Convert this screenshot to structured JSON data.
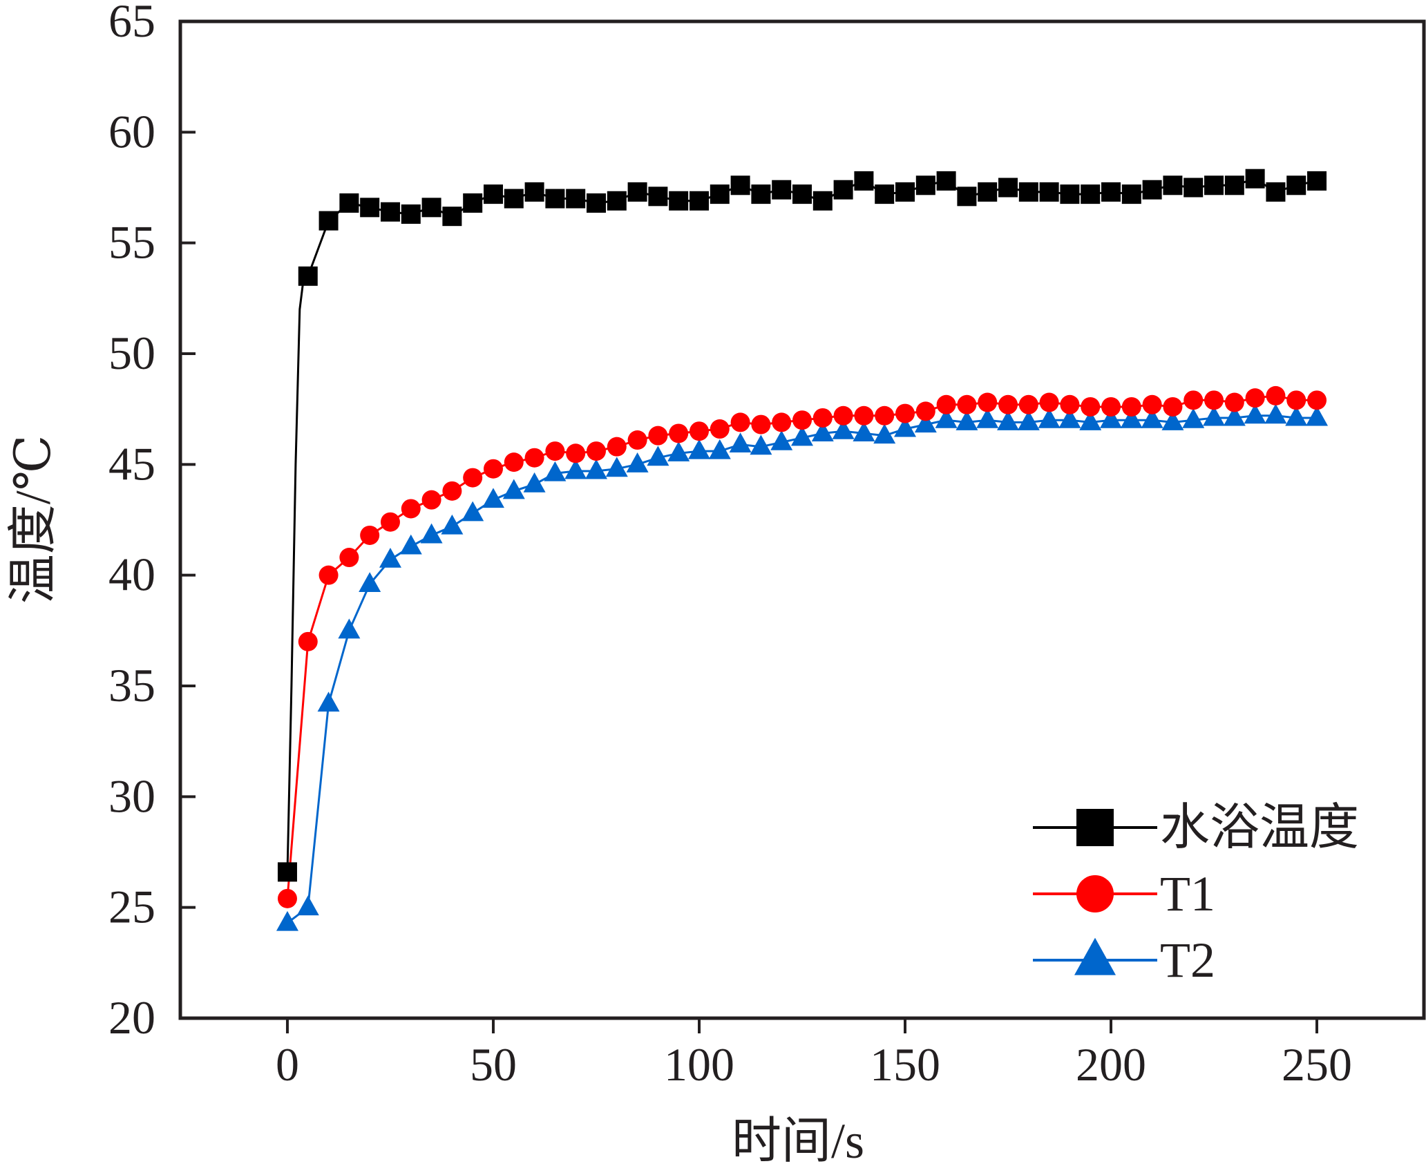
{
  "chart_data": {
    "type": "line",
    "title": "",
    "xlabel": "时间/s",
    "ylabel": "温度/℃",
    "xlim": [
      -26,
      276
    ],
    "ylim": [
      20,
      65
    ],
    "xticks": [
      0,
      50,
      100,
      150,
      200,
      250
    ],
    "yticks": [
      20,
      25,
      30,
      35,
      40,
      45,
      50,
      55,
      60,
      65
    ],
    "grid": false,
    "legend_position": "bottom-right",
    "series": [
      {
        "name": "水浴温度",
        "color": "#000000",
        "marker": "square",
        "x": [
          0,
          1,
          2,
          3,
          4,
          5,
          10,
          15,
          20,
          25,
          30,
          35,
          40,
          45,
          50,
          55,
          60,
          65,
          70,
          75,
          80,
          85,
          90,
          95,
          100,
          105,
          110,
          115,
          120,
          125,
          130,
          135,
          140,
          145,
          150,
          155,
          160,
          165,
          170,
          175,
          180,
          185,
          190,
          195,
          200,
          205,
          210,
          215,
          220,
          225,
          230,
          235,
          240,
          245,
          250
        ],
        "y": [
          26.6,
          35,
          45,
          52,
          53.5,
          53.5,
          56.0,
          56.8,
          56.6,
          56.4,
          56.3,
          56.6,
          56.2,
          56.8,
          57.2,
          57.0,
          57.3,
          57.0,
          57.0,
          56.8,
          56.9,
          57.3,
          57.1,
          56.9,
          56.9,
          57.2,
          57.6,
          57.2,
          57.4,
          57.2,
          56.9,
          57.4,
          57.8,
          57.2,
          57.3,
          57.6,
          57.8,
          57.1,
          57.3,
          57.5,
          57.3,
          57.3,
          57.2,
          57.2,
          57.3,
          57.2,
          57.4,
          57.6,
          57.5,
          57.6,
          57.6,
          57.9,
          57.3,
          57.6,
          57.8
        ]
      },
      {
        "name": "T1",
        "color": "#ff0000",
        "marker": "circle",
        "x": [
          0,
          5,
          10,
          15,
          20,
          25,
          30,
          35,
          40,
          45,
          50,
          55,
          60,
          65,
          70,
          75,
          80,
          85,
          90,
          95,
          100,
          105,
          110,
          115,
          120,
          125,
          130,
          135,
          140,
          145,
          150,
          155,
          160,
          165,
          170,
          175,
          180,
          185,
          190,
          195,
          200,
          205,
          210,
          215,
          220,
          225,
          230,
          235,
          240,
          245,
          250
        ],
        "y": [
          25.4,
          37.0,
          40.0,
          40.8,
          41.8,
          42.4,
          43.0,
          43.4,
          43.8,
          44.4,
          44.8,
          45.1,
          45.3,
          45.6,
          45.5,
          45.6,
          45.8,
          46.1,
          46.3,
          46.4,
          46.5,
          46.6,
          46.9,
          46.8,
          46.9,
          47.0,
          47.1,
          47.2,
          47.2,
          47.2,
          47.3,
          47.4,
          47.7,
          47.7,
          47.8,
          47.7,
          47.7,
          47.8,
          47.7,
          47.6,
          47.6,
          47.6,
          47.7,
          47.6,
          47.9,
          47.9,
          47.8,
          48.0,
          48.1,
          47.9,
          47.9
        ]
      },
      {
        "name": "T2",
        "color": "#0066cc",
        "marker": "triangle",
        "x": [
          0,
          5,
          10,
          15,
          20,
          25,
          30,
          35,
          40,
          45,
          50,
          55,
          60,
          65,
          70,
          75,
          80,
          85,
          90,
          95,
          100,
          105,
          110,
          115,
          120,
          125,
          130,
          135,
          140,
          145,
          150,
          155,
          160,
          165,
          170,
          175,
          180,
          185,
          190,
          195,
          200,
          205,
          210,
          215,
          220,
          225,
          230,
          235,
          240,
          245,
          250
        ],
        "y": [
          24.3,
          25.0,
          34.2,
          37.5,
          39.6,
          40.7,
          41.3,
          41.8,
          42.2,
          42.8,
          43.4,
          43.8,
          44.1,
          44.6,
          44.7,
          44.7,
          44.8,
          45.0,
          45.3,
          45.5,
          45.6,
          45.6,
          45.9,
          45.8,
          46.0,
          46.2,
          46.4,
          46.5,
          46.4,
          46.3,
          46.6,
          46.8,
          47.0,
          46.9,
          47.0,
          46.9,
          46.9,
          47.0,
          47.0,
          46.9,
          47.0,
          47.0,
          47.0,
          46.9,
          47.0,
          47.1,
          47.1,
          47.2,
          47.2,
          47.1,
          47.1
        ]
      }
    ]
  }
}
